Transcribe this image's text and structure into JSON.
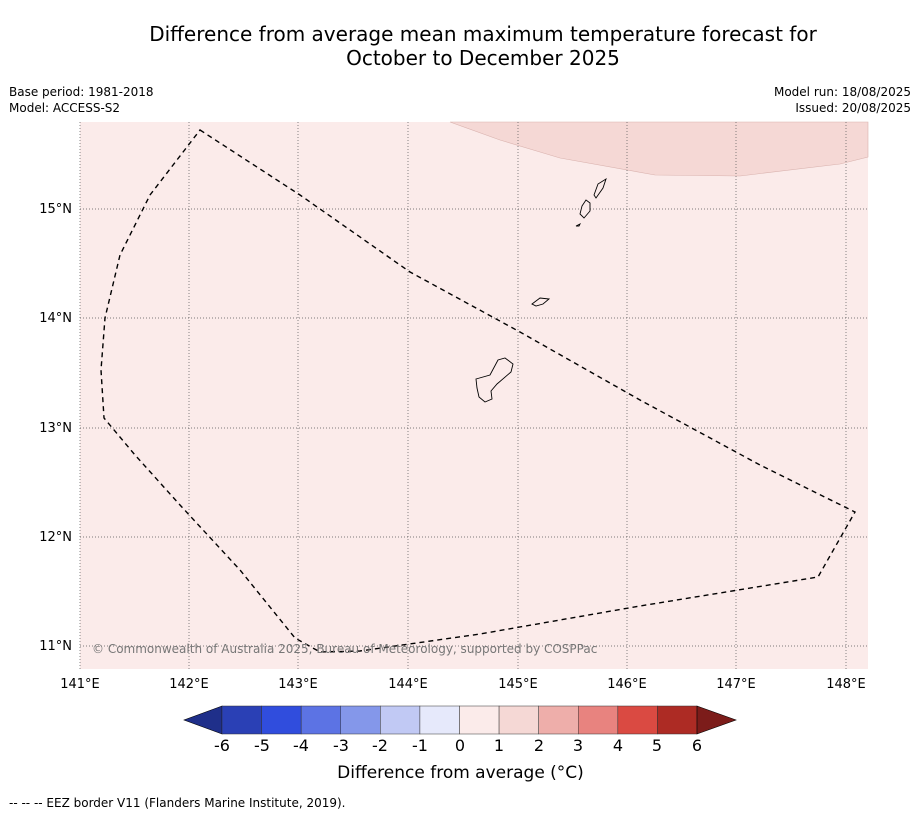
{
  "title_line1": "Difference from average mean maximum temperature forecast for",
  "title_line2": "October to December 2025",
  "base_period": "Base period: 1981-2018",
  "model": "Model: ACCESS-S2",
  "model_run": "Model run: 18/08/2025",
  "issued": "Issued: 20/08/2025",
  "map": {
    "lon_labels": [
      "141°E",
      "142°E",
      "143°E",
      "144°E",
      "145°E",
      "146°E",
      "147°E",
      "148°E"
    ],
    "lat_labels": [
      "15°N",
      "14°N",
      "13°N",
      "12°N",
      "11°N"
    ],
    "copyright": "© Commonwealth of Australia 2025, Bureau of Meteorology, supported by COSPPac",
    "background_anomaly_color": "#fbebea",
    "warmer_region_color": "#f5d8d5"
  },
  "colorbar": {
    "label": "Difference from average (°C)",
    "ticks": [
      "-6",
      "-5",
      "-4",
      "-3",
      "-2",
      "-1",
      "0",
      "1",
      "2",
      "3",
      "4",
      "5",
      "6"
    ],
    "colors": [
      "#1f2f8a",
      "#2a40b5",
      "#304ddd",
      "#5c73e4",
      "#8497ea",
      "#c1c9f4",
      "#e6e9fb",
      "#fbebea",
      "#f5d8d5",
      "#eeaeaa",
      "#e8837f",
      "#da4a42",
      "#ad2b24",
      "#7c1c1a"
    ]
  },
  "footer": "--  --  -- EEZ border V11 (Flanders Marine Institute, 2019)."
}
